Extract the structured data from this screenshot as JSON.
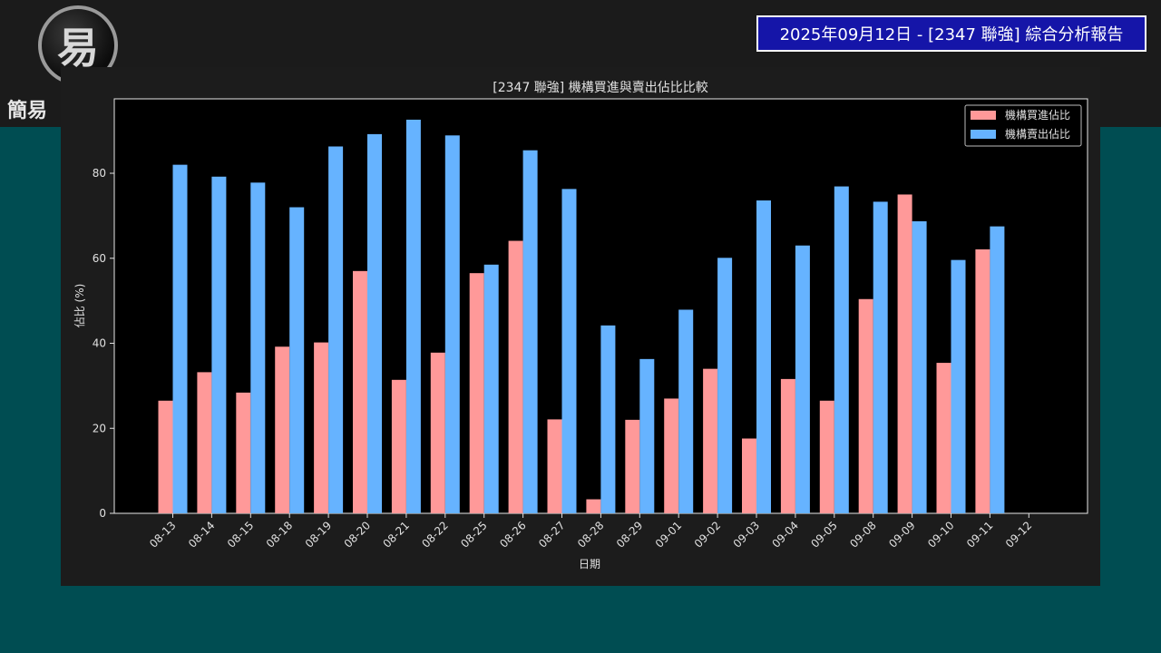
{
  "header": {
    "logo_glyph": "易",
    "brand_text": "簡易",
    "report_title": "2025年09月12日 - [2347 聯強] 綜合分析報告"
  },
  "colors": {
    "buy": "#ff9999",
    "sell": "#66b3ff",
    "plot_bg": "#000000",
    "panel_bg": "#1c1c1c"
  },
  "chart_data": {
    "type": "bar",
    "title": "[2347 聯強] 機構買進與賣出佔比比較",
    "xlabel": "日期",
    "ylabel": "佔比 (%)",
    "ylim": [
      0,
      97.5
    ],
    "yticks": [
      0,
      20,
      40,
      60,
      80
    ],
    "legend_position": "top-right",
    "grid": false,
    "categories": [
      "08-13",
      "08-14",
      "08-15",
      "08-18",
      "08-19",
      "08-20",
      "08-21",
      "08-22",
      "08-25",
      "08-26",
      "08-27",
      "08-28",
      "08-29",
      "09-01",
      "09-02",
      "09-03",
      "09-04",
      "09-05",
      "09-08",
      "09-09",
      "09-10",
      "09-11",
      "09-12"
    ],
    "series": [
      {
        "name": "機構買進佔比",
        "color": "#ff9999",
        "values": [
          26.5,
          33.2,
          28.4,
          39.2,
          40.2,
          57.0,
          31.4,
          37.8,
          56.5,
          64.1,
          22.1,
          3.3,
          22.0,
          27.0,
          34.0,
          17.6,
          31.6,
          26.5,
          50.4,
          75.0,
          35.4,
          62.1,
          null
        ]
      },
      {
        "name": "機構賣出佔比",
        "color": "#66b3ff",
        "values": [
          82.0,
          79.2,
          77.8,
          72.0,
          86.3,
          89.2,
          92.6,
          88.9,
          58.5,
          85.4,
          76.3,
          44.2,
          36.3,
          47.9,
          60.1,
          73.6,
          63.0,
          76.9,
          73.3,
          68.7,
          59.6,
          67.5,
          null
        ]
      }
    ]
  }
}
